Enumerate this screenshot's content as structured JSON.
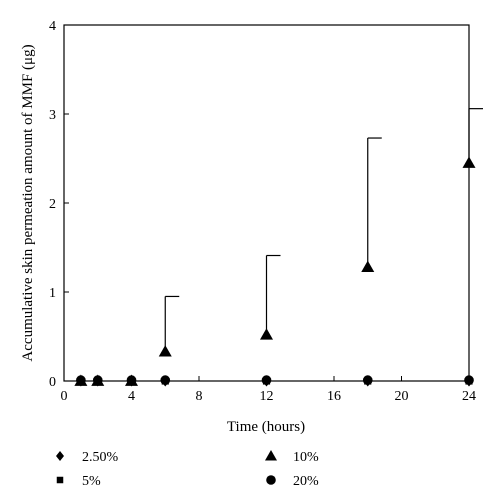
{
  "chart_data": {
    "type": "scatter",
    "title": "",
    "xlabel": "Time (hours)",
    "ylabel": "Accumulative skin permeation amount of MMF (μg)",
    "xlim": [
      0,
      24
    ],
    "ylim": [
      0,
      4
    ],
    "xticks": [
      "0",
      "4",
      "8",
      "12",
      "16",
      "20",
      "24"
    ],
    "yticks": [
      "0",
      "1",
      "2",
      "3",
      "4"
    ],
    "grid": false,
    "legend_position": "bottom",
    "x": [
      1,
      2,
      4,
      6,
      12,
      18,
      24
    ],
    "series": [
      {
        "name": "2.50%",
        "marker": "diamond",
        "values": [
          0,
          0,
          0,
          0,
          0,
          0,
          0
        ]
      },
      {
        "name": "5%",
        "marker": "square",
        "values": [
          0,
          0,
          0,
          0,
          0,
          0,
          0
        ]
      },
      {
        "name": "10%",
        "marker": "triangle",
        "values": [
          0,
          0,
          0,
          0.33,
          0.52,
          1.28,
          2.45
        ],
        "error_upper": [
          0,
          0,
          0,
          0.95,
          1.41,
          2.73,
          3.06
        ]
      },
      {
        "name": "20%",
        "marker": "circle",
        "values": [
          0.01,
          0.01,
          0.01,
          0.01,
          0.01,
          0.01,
          0.01
        ]
      }
    ]
  }
}
